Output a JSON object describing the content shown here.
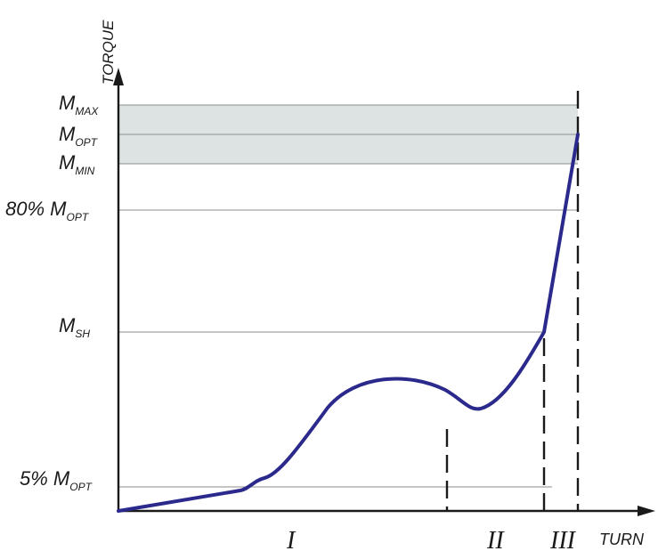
{
  "diagram": {
    "y_axis_label": "TORQUE",
    "x_axis_label": "TURN",
    "levels": {
      "m_max": {
        "base": "M",
        "sub": "MAX"
      },
      "m_opt": {
        "base": "M",
        "sub": "OPT"
      },
      "m_min": {
        "base": "M",
        "sub": "MIN"
      },
      "pct80": {
        "prefix": "80% ",
        "base": "M",
        "sub": "OPT"
      },
      "m_sh": {
        "base": "M",
        "sub": "SH"
      },
      "pct5": {
        "prefix": "5% ",
        "base": "M",
        "sub": "OPT"
      }
    },
    "zones": [
      "I",
      "II",
      "III"
    ],
    "colors": {
      "curve": "#2b2a8c",
      "band": "#dde3e3",
      "axis": "#1a1a1a",
      "grid": "#8c8c8c"
    }
  }
}
